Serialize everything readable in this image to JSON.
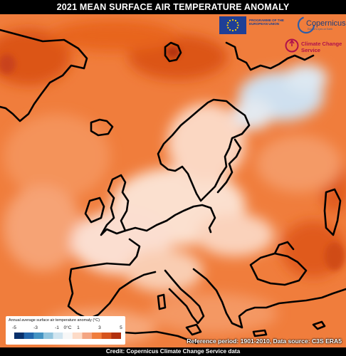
{
  "title": "2021 MEAN SURFACE AIR TEMPERATURE ANOMALY",
  "logos": {
    "eu_text": "PROGRAMME OF THE EUROPEAN UNION",
    "copernicus_name": "Copernicus",
    "copernicus_tagline": "Europe's eyes on Earth",
    "c3s_name": "Climate Change Service"
  },
  "legend": {
    "title": "Annual average surface air temperature anomaly (°C)",
    "ticks": [
      "-5",
      "-3",
      "-1",
      "0°C",
      "1",
      "3",
      "5"
    ],
    "tick_values": [
      -5,
      -3,
      -1,
      0,
      1,
      3,
      5
    ],
    "range": [
      -5,
      5
    ],
    "colors": [
      "#08306b",
      "#2166ac",
      "#4393c3",
      "#92c5de",
      "#d1e5f0",
      "#f7f7f7",
      "#fddbc7",
      "#f4a582",
      "#f07d3c",
      "#d6541d",
      "#b2300e"
    ]
  },
  "reference": "Reference period: 1901-2010, Data source: C3S ERA5",
  "credit": "Credit: Copernicus Climate Change Service data",
  "colors": {
    "background": "#000000",
    "land_outline": "#000000",
    "warm_strong": "#d84a12",
    "warm": "#f07d3c",
    "warm_light": "#f9b58a",
    "neutral": "#fbe3d6",
    "cool": "#c7dcef"
  }
}
